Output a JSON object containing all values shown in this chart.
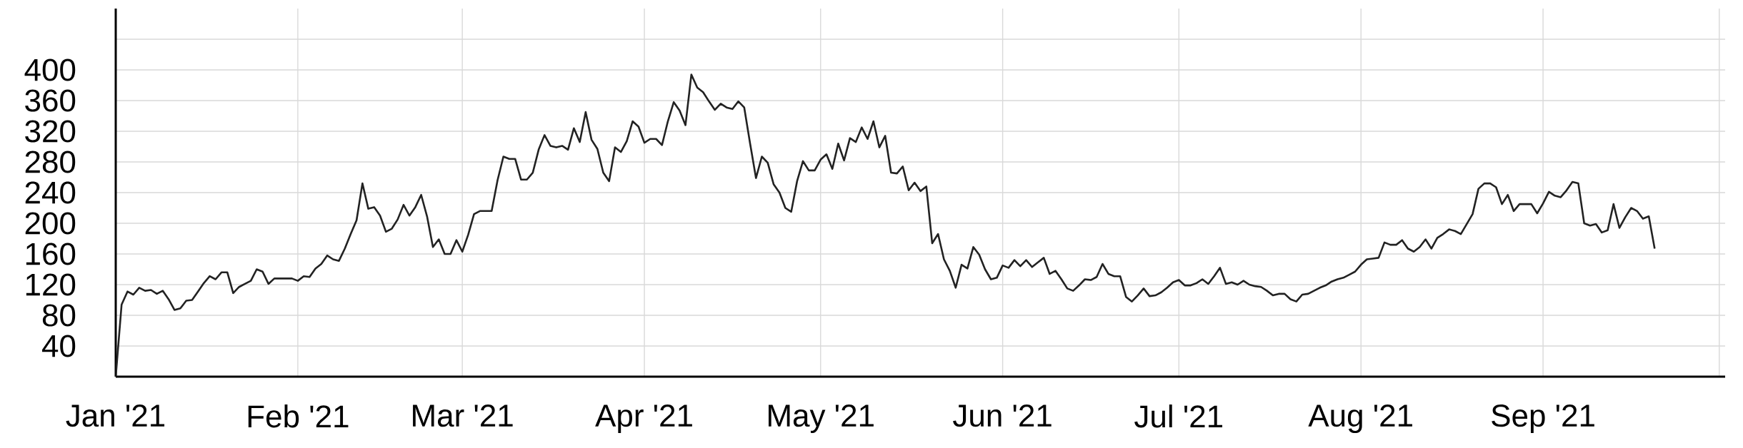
{
  "chart_data": {
    "type": "line",
    "color": "#222222",
    "grid": true,
    "xlim": [
      "2021-01-01",
      "2021-10-02"
    ],
    "ylim": [
      0,
      480
    ],
    "xticks": [
      {
        "value": "2021-01-01",
        "label": "Jan '21"
      },
      {
        "value": "2021-02-01",
        "label": "Feb '21"
      },
      {
        "value": "2021-03-01",
        "label": "Mar '21"
      },
      {
        "value": "2021-04-01",
        "label": "Apr '21"
      },
      {
        "value": "2021-05-01",
        "label": "May '21"
      },
      {
        "value": "2021-06-01",
        "label": "Jun '21"
      },
      {
        "value": "2021-07-01",
        "label": "Jul '21"
      },
      {
        "value": "2021-08-01",
        "label": "Aug '21"
      },
      {
        "value": "2021-09-01",
        "label": "Sep '21"
      },
      {
        "value": "2021-10-01",
        "label": null
      }
    ],
    "yticks": [
      40,
      80,
      120,
      160,
      200,
      240,
      280,
      320,
      360,
      400,
      {
        "value": 440,
        "label": null
      }
    ],
    "x": [
      "2021-01-01",
      "2021-01-02",
      "2021-01-03",
      "2021-01-04",
      "2021-01-05",
      "2021-01-06",
      "2021-01-07",
      "2021-01-08",
      "2021-01-09",
      "2021-01-10",
      "2021-01-11",
      "2021-01-12",
      "2021-01-13",
      "2021-01-14",
      "2021-01-15",
      "2021-01-16",
      "2021-01-17",
      "2021-01-18",
      "2021-01-19",
      "2021-01-20",
      "2021-01-21",
      "2021-01-22",
      "2021-01-23",
      "2021-01-24",
      "2021-01-25",
      "2021-01-26",
      "2021-01-27",
      "2021-01-28",
      "2021-01-29",
      "2021-01-30",
      "2021-01-31",
      "2021-02-01",
      "2021-02-02",
      "2021-02-03",
      "2021-02-04",
      "2021-02-05",
      "2021-02-06",
      "2021-02-07",
      "2021-02-08",
      "2021-02-09",
      "2021-02-10",
      "2021-02-11",
      "2021-02-12",
      "2021-02-13",
      "2021-02-14",
      "2021-02-15",
      "2021-02-16",
      "2021-02-17",
      "2021-02-18",
      "2021-02-19",
      "2021-02-20",
      "2021-02-21",
      "2021-02-22",
      "2021-02-23",
      "2021-02-24",
      "2021-02-25",
      "2021-02-26",
      "2021-02-27",
      "2021-02-28",
      "2021-03-01",
      "2021-03-02",
      "2021-03-03",
      "2021-03-04",
      "2021-03-05",
      "2021-03-06",
      "2021-03-07",
      "2021-03-08",
      "2021-03-09",
      "2021-03-10",
      "2021-03-11",
      "2021-03-12",
      "2021-03-13",
      "2021-03-14",
      "2021-03-15",
      "2021-03-16",
      "2021-03-17",
      "2021-03-18",
      "2021-03-19",
      "2021-03-20",
      "2021-03-21",
      "2021-03-22",
      "2021-03-23",
      "2021-03-24",
      "2021-03-25",
      "2021-03-26",
      "2021-03-27",
      "2021-03-28",
      "2021-03-29",
      "2021-03-30",
      "2021-03-31",
      "2021-04-01",
      "2021-04-02",
      "2021-04-03",
      "2021-04-04",
      "2021-04-05",
      "2021-04-06",
      "2021-04-07",
      "2021-04-08",
      "2021-04-09",
      "2021-04-10",
      "2021-04-11",
      "2021-04-12",
      "2021-04-13",
      "2021-04-14",
      "2021-04-15",
      "2021-04-16",
      "2021-04-17",
      "2021-04-18",
      "2021-04-19",
      "2021-04-20",
      "2021-04-21",
      "2021-04-22",
      "2021-04-23",
      "2021-04-24",
      "2021-04-25",
      "2021-04-26",
      "2021-04-27",
      "2021-04-28",
      "2021-04-29",
      "2021-04-30",
      "2021-05-01",
      "2021-05-02",
      "2021-05-03",
      "2021-05-04",
      "2021-05-05",
      "2021-05-06",
      "2021-05-07",
      "2021-05-08",
      "2021-05-09",
      "2021-05-10",
      "2021-05-11",
      "2021-05-12",
      "2021-05-13",
      "2021-05-14",
      "2021-05-15",
      "2021-05-16",
      "2021-05-17",
      "2021-05-18",
      "2021-05-19",
      "2021-05-20",
      "2021-05-21",
      "2021-05-22",
      "2021-05-23",
      "2021-05-24",
      "2021-05-25",
      "2021-05-26",
      "2021-05-27",
      "2021-05-28",
      "2021-05-29",
      "2021-05-30",
      "2021-05-31",
      "2021-06-01",
      "2021-06-02",
      "2021-06-03",
      "2021-06-04",
      "2021-06-05",
      "2021-06-06",
      "2021-06-07",
      "2021-06-08",
      "2021-06-09",
      "2021-06-10",
      "2021-06-11",
      "2021-06-12",
      "2021-06-13",
      "2021-06-14",
      "2021-06-15",
      "2021-06-16",
      "2021-06-17",
      "2021-06-18",
      "2021-06-19",
      "2021-06-20",
      "2021-06-21",
      "2021-06-22",
      "2021-06-23",
      "2021-06-24",
      "2021-06-25",
      "2021-06-26",
      "2021-06-27",
      "2021-06-28",
      "2021-06-29",
      "2021-06-30",
      "2021-07-01",
      "2021-07-02",
      "2021-07-03",
      "2021-07-04",
      "2021-07-05",
      "2021-07-06",
      "2021-07-07",
      "2021-07-08",
      "2021-07-09",
      "2021-07-10",
      "2021-07-11",
      "2021-07-12",
      "2021-07-13",
      "2021-07-14",
      "2021-07-15",
      "2021-07-16",
      "2021-07-17",
      "2021-07-18",
      "2021-07-19",
      "2021-07-20",
      "2021-07-21",
      "2021-07-22",
      "2021-07-23",
      "2021-07-24",
      "2021-07-25",
      "2021-07-26",
      "2021-07-27",
      "2021-07-28",
      "2021-07-29",
      "2021-07-30",
      "2021-07-31",
      "2021-08-01",
      "2021-08-02",
      "2021-08-03",
      "2021-08-04",
      "2021-08-05",
      "2021-08-06",
      "2021-08-07",
      "2021-08-08",
      "2021-08-09",
      "2021-08-10",
      "2021-08-11",
      "2021-08-12",
      "2021-08-13",
      "2021-08-14",
      "2021-08-15",
      "2021-08-16",
      "2021-08-17",
      "2021-08-18",
      "2021-08-19",
      "2021-08-20",
      "2021-08-21",
      "2021-08-22",
      "2021-08-23",
      "2021-08-24",
      "2021-08-25",
      "2021-08-26",
      "2021-08-27",
      "2021-08-28",
      "2021-08-29",
      "2021-08-30",
      "2021-08-31",
      "2021-09-01",
      "2021-09-02",
      "2021-09-03",
      "2021-09-04",
      "2021-09-05",
      "2021-09-06",
      "2021-09-07",
      "2021-09-08",
      "2021-09-09",
      "2021-09-10",
      "2021-09-11",
      "2021-09-12",
      "2021-09-13",
      "2021-09-14",
      "2021-09-15",
      "2021-09-16",
      "2021-09-17",
      "2021-09-18",
      "2021-09-19",
      "2021-09-20"
    ],
    "values": [
      0,
      94,
      111,
      107,
      116,
      112,
      113,
      108,
      112,
      101,
      87,
      89,
      99,
      100,
      111,
      122,
      131,
      127,
      136,
      136,
      109,
      117,
      121,
      125,
      140,
      137,
      121,
      128,
      128,
      128,
      128,
      125,
      131,
      130,
      141,
      147,
      158,
      153,
      151,
      167,
      186,
      204,
      252,
      219,
      221,
      210,
      189,
      193,
      205,
      224,
      210,
      221,
      237,
      209,
      169,
      179,
      160,
      160,
      178,
      163,
      185,
      212,
      216,
      216,
      216,
      256,
      287,
      284,
      284,
      257,
      257,
      266,
      296,
      315,
      301,
      299,
      301,
      296,
      324,
      306,
      345,
      309,
      297,
      266,
      255,
      299,
      293,
      307,
      333,
      326,
      305,
      310,
      310,
      302,
      333,
      358,
      347,
      328,
      394,
      377,
      371,
      359,
      348,
      356,
      351,
      349,
      359,
      351,
      304,
      259,
      287,
      279,
      251,
      240,
      220,
      215,
      255,
      281,
      269,
      269,
      283,
      290,
      271,
      304,
      282,
      311,
      306,
      325,
      310,
      333,
      299,
      314,
      266,
      265,
      274,
      243,
      253,
      242,
      248,
      174,
      186,
      153,
      138,
      116,
      146,
      141,
      169,
      159,
      140,
      127,
      129,
      145,
      142,
      152,
      144,
      152,
      143,
      149,
      155,
      134,
      138,
      127,
      115,
      112,
      119,
      127,
      126,
      130,
      147,
      134,
      131,
      131,
      104,
      98,
      106,
      115,
      105,
      106,
      110,
      116,
      123,
      126,
      119,
      119,
      122,
      127,
      121,
      131,
      142,
      121,
      123,
      120,
      125,
      120,
      118,
      117,
      112,
      106,
      108,
      108,
      101,
      98,
      107,
      108,
      112,
      116,
      119,
      124,
      127,
      129,
      133,
      137,
      146,
      153,
      154,
      155,
      175,
      172,
      172,
      178,
      167,
      163,
      169,
      179,
      167,
      181,
      186,
      192,
      190,
      186,
      199,
      212,
      245,
      252,
      252,
      247,
      225,
      237,
      216,
      225,
      225,
      225,
      213,
      226,
      241,
      236,
      234,
      243,
      254,
      252,
      200,
      197,
      199,
      188,
      191,
      225,
      194,
      208,
      220,
      216,
      206,
      209,
      167
    ]
  }
}
